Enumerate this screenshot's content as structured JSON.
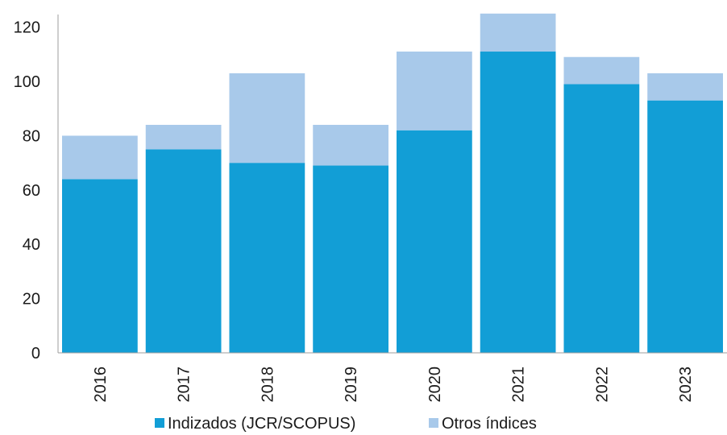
{
  "chart_data": {
    "type": "bar",
    "stacked": true,
    "categories": [
      "2016",
      "2017",
      "2018",
      "2019",
      "2020",
      "2021",
      "2022",
      "2023"
    ],
    "series": [
      {
        "name": "Indizados (JCR/SCOPUS)",
        "color": "#129ed6",
        "values": [
          64,
          75,
          70,
          69,
          82,
          111,
          99,
          93
        ]
      },
      {
        "name": "Otros índices",
        "color": "#a8c9ea",
        "values": [
          16,
          9,
          33,
          15,
          29,
          14,
          10,
          10
        ]
      }
    ],
    "ylim": [
      0,
      130
    ],
    "yticks": [
      0,
      20,
      40,
      60,
      80,
      100,
      120
    ],
    "grid": false,
    "legend": "bottom",
    "title": "",
    "xlabel": "",
    "ylabel": ""
  }
}
